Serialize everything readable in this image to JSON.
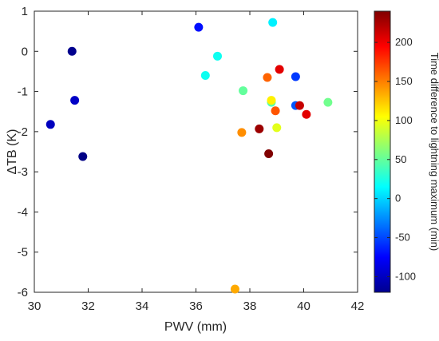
{
  "chart_data": {
    "type": "scatter",
    "xlabel": "PWV (mm)",
    "ylabel": "ΔTB (K)",
    "xlim": [
      30,
      42
    ],
    "ylim": [
      -6,
      1
    ],
    "xticks": [
      30,
      32,
      34,
      36,
      38,
      40,
      42
    ],
    "yticks": [
      1,
      0,
      -1,
      -2,
      -3,
      -4,
      -5,
      -6
    ],
    "colorbar": {
      "label": "Time difference to lightning maximum (min)",
      "range": [
        -120,
        240
      ],
      "ticks": [
        200,
        150,
        100,
        50,
        0,
        -50,
        -100
      ],
      "colormap": "jet"
    },
    "points": [
      {
        "x": 31.4,
        "y": 0.0,
        "c": -115
      },
      {
        "x": 31.5,
        "y": -1.22,
        "c": -95
      },
      {
        "x": 30.6,
        "y": -1.82,
        "c": -98
      },
      {
        "x": 31.8,
        "y": -2.62,
        "c": -118
      },
      {
        "x": 36.1,
        "y": 0.6,
        "c": -70
      },
      {
        "x": 36.35,
        "y": -0.6,
        "c": 20
      },
      {
        "x": 36.8,
        "y": -0.12,
        "c": 20
      },
      {
        "x": 37.75,
        "y": -0.98,
        "c": 50
      },
      {
        "x": 37.7,
        "y": -2.02,
        "c": 145
      },
      {
        "x": 37.45,
        "y": -5.92,
        "c": 135
      },
      {
        "x": 38.35,
        "y": -1.93,
        "c": 230
      },
      {
        "x": 38.65,
        "y": -0.65,
        "c": 160
      },
      {
        "x": 38.7,
        "y": -2.55,
        "c": 240
      },
      {
        "x": 38.85,
        "y": 0.72,
        "c": 10
      },
      {
        "x": 38.8,
        "y": -1.27,
        "c": 45
      },
      {
        "x": 38.8,
        "y": -1.22,
        "c": 110
      },
      {
        "x": 38.95,
        "y": -1.48,
        "c": 165
      },
      {
        "x": 39.0,
        "y": -1.9,
        "c": 95
      },
      {
        "x": 39.1,
        "y": -0.45,
        "c": 205
      },
      {
        "x": 39.7,
        "y": -0.63,
        "c": -55
      },
      {
        "x": 39.7,
        "y": -1.35,
        "c": -45
      },
      {
        "x": 39.85,
        "y": -1.35,
        "c": 215
      },
      {
        "x": 40.1,
        "y": -1.57,
        "c": 205
      },
      {
        "x": 40.9,
        "y": -1.27,
        "c": 55
      }
    ]
  }
}
